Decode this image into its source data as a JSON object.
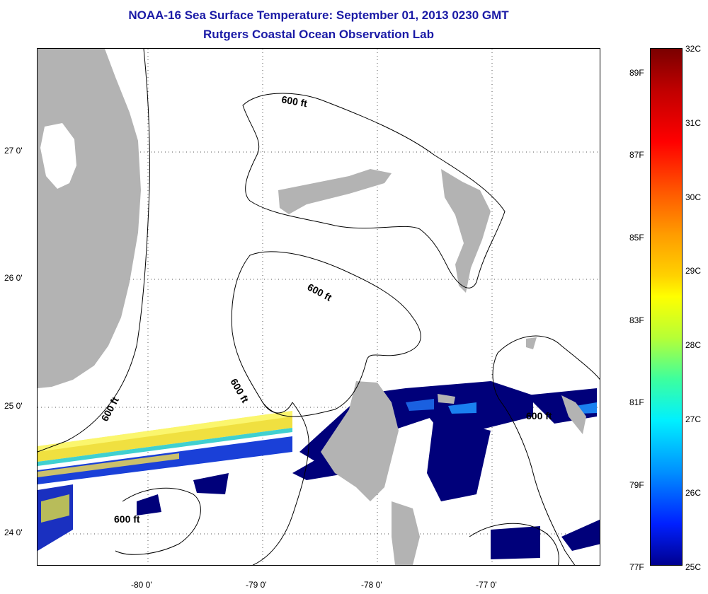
{
  "title_line1": "NOAA-16 Sea Surface Temperature:  September 01, 2013 0230 GMT",
  "title_line2": "Rutgers Coastal Ocean Observation Lab",
  "axes": {
    "x_ticks": [
      "-80 0'",
      "-79 0'",
      "-78 0'",
      "-77 0'"
    ],
    "y_ticks": [
      "27 0'",
      "26 0'",
      "25 0'",
      "24 0'"
    ]
  },
  "isobath_labels": [
    "600 ft",
    "600 ft",
    "600 ft",
    "600 ft",
    "600 ft",
    "600 ft"
  ],
  "colorbar": {
    "celsius": [
      "32C",
      "31C",
      "30C",
      "29C",
      "28C",
      "27C",
      "26C",
      "25C"
    ],
    "fahrenheit": [
      "89F",
      "87F",
      "85F",
      "83F",
      "81F",
      "79F",
      "77F"
    ]
  },
  "colors": {
    "land": "#b3b3b3",
    "title": "#1a1aa6",
    "cold_sst": "#00007a",
    "warm_sst": "#ffff00"
  }
}
